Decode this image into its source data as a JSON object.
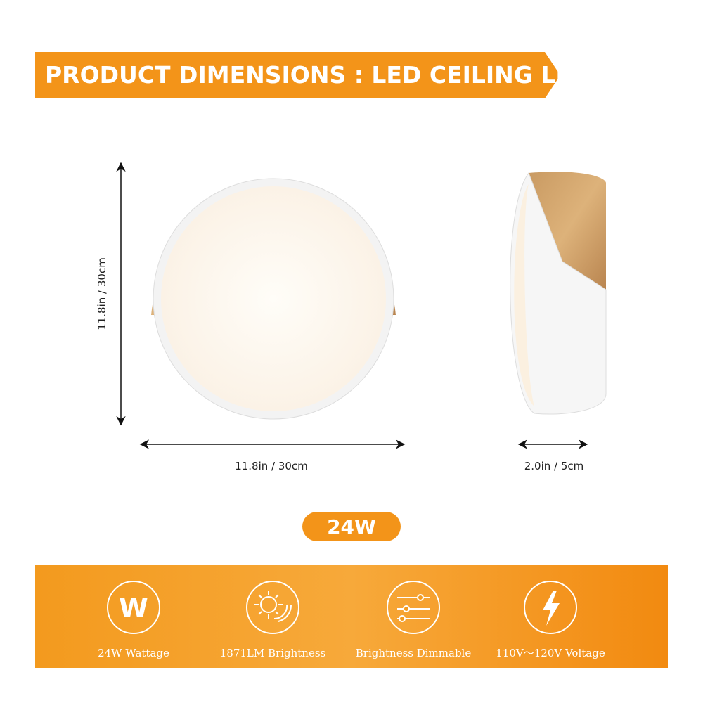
{
  "header": {
    "title": "PRODUCT DIMENSIONS : LED CEILING LIGHT"
  },
  "dimensions": {
    "height": "11.8in / 30cm",
    "width": "11.8in / 30cm",
    "depth": "2.0in / 5cm"
  },
  "badge": "24W",
  "features": [
    {
      "icon_text": "W",
      "label": "24W Wattage"
    },
    {
      "label": "1871LM Brightness"
    },
    {
      "label": "Brightness Dimmable"
    },
    {
      "label": "110V～120V Voltage"
    }
  ]
}
